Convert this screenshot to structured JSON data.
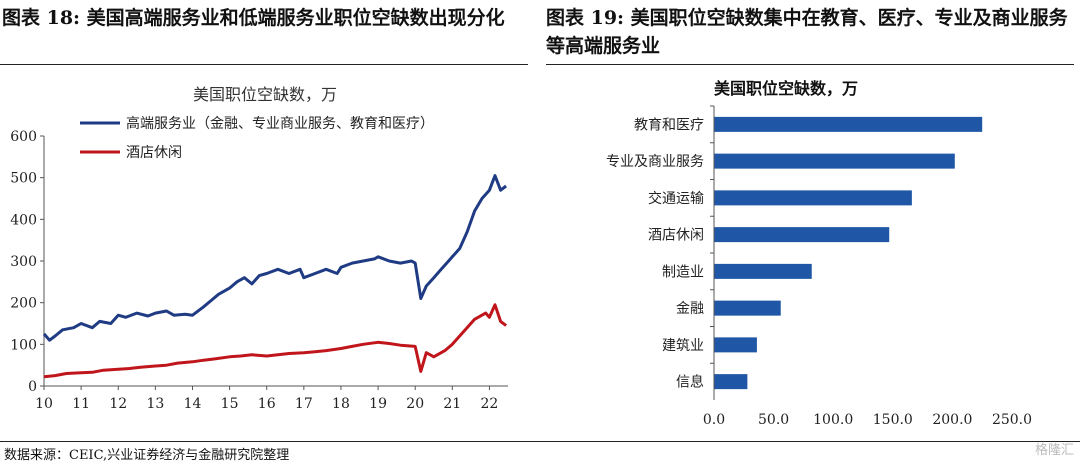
{
  "left_heading": "图表 18:  美国高端服务业和低端服务业职位空缺数出现分化",
  "right_heading": "图表 19:   美国职位空缺数集中在教育、医疗、专业及商业服务等高端服务业",
  "source": "数据来源：CEIC,兴业证券经济与金融研究院整理",
  "watermark": "格隆汇",
  "colors": {
    "navy": "#1f3b84",
    "red": "#c0161b",
    "bar": "#1f57a6",
    "axis": "#555555"
  },
  "chart_data": [
    {
      "type": "line",
      "title": "美国职位空缺数，万",
      "xlabel": "",
      "ylabel": "",
      "x_ticks": [
        "10",
        "11",
        "12",
        "13",
        "14",
        "15",
        "16",
        "17",
        "18",
        "19",
        "20",
        "21",
        "22"
      ],
      "xlim": [
        2010,
        2022.5
      ],
      "ylim": [
        0,
        600
      ],
      "y_ticks": [
        0,
        100,
        200,
        300,
        400,
        500,
        600
      ],
      "legend": "top-left",
      "series": [
        {
          "name": "高端服务业（金融、专业商业服务、教育和医疗）",
          "color": "#1f3b84",
          "x": [
            2010.0,
            2010.15,
            2010.3,
            2010.5,
            2010.8,
            2011.0,
            2011.3,
            2011.5,
            2011.8,
            2012.0,
            2012.2,
            2012.5,
            2012.8,
            2013.0,
            2013.3,
            2013.5,
            2013.8,
            2014.0,
            2014.3,
            2014.5,
            2014.7,
            2015.0,
            2015.2,
            2015.4,
            2015.6,
            2015.8,
            2016.0,
            2016.3,
            2016.6,
            2016.9,
            2017.0,
            2017.3,
            2017.6,
            2017.9,
            2018.0,
            2018.3,
            2018.6,
            2018.9,
            2019.0,
            2019.3,
            2019.6,
            2019.9,
            2020.0,
            2020.15,
            2020.3,
            2020.5,
            2020.7,
            2020.9,
            2021.0,
            2021.2,
            2021.4,
            2021.6,
            2021.8,
            2022.0,
            2022.15,
            2022.3,
            2022.45
          ],
          "y": [
            125,
            110,
            120,
            135,
            140,
            150,
            140,
            155,
            150,
            170,
            165,
            175,
            168,
            175,
            180,
            170,
            172,
            170,
            190,
            205,
            220,
            235,
            250,
            260,
            245,
            265,
            270,
            280,
            270,
            280,
            260,
            270,
            280,
            270,
            285,
            295,
            300,
            305,
            310,
            300,
            295,
            300,
            295,
            210,
            240,
            260,
            280,
            300,
            310,
            330,
            370,
            420,
            450,
            470,
            505,
            470,
            480
          ]
        },
        {
          "name": "酒店休闲",
          "color": "#c0161b",
          "x": [
            2010.0,
            2010.3,
            2010.6,
            2011.0,
            2011.3,
            2011.6,
            2012.0,
            2012.3,
            2012.6,
            2013.0,
            2013.3,
            2013.6,
            2014.0,
            2014.3,
            2014.6,
            2015.0,
            2015.3,
            2015.6,
            2016.0,
            2016.3,
            2016.6,
            2017.0,
            2017.3,
            2017.6,
            2018.0,
            2018.3,
            2018.6,
            2019.0,
            2019.3,
            2019.6,
            2020.0,
            2020.15,
            2020.3,
            2020.5,
            2020.8,
            2021.0,
            2021.3,
            2021.6,
            2021.9,
            2022.0,
            2022.15,
            2022.3,
            2022.45
          ],
          "y": [
            22,
            25,
            30,
            32,
            33,
            38,
            40,
            42,
            45,
            48,
            50,
            55,
            58,
            62,
            65,
            70,
            72,
            75,
            72,
            75,
            78,
            80,
            82,
            85,
            90,
            95,
            100,
            105,
            102,
            98,
            95,
            35,
            80,
            70,
            85,
            100,
            130,
            160,
            175,
            165,
            195,
            155,
            145
          ]
        }
      ]
    },
    {
      "type": "bar",
      "orientation": "horizontal",
      "title": "美国职位空缺数，万",
      "xlabel": "",
      "ylabel": "",
      "categories": [
        "教育和医疗",
        "专业及商业服务",
        "交通运输",
        "酒店休闲",
        "制造业",
        "金融",
        "建筑业",
        "信息"
      ],
      "values": [
        225,
        202,
        166,
        147,
        82,
        56,
        36,
        28
      ],
      "xlim": [
        0,
        250
      ],
      "x_ticks": [
        "0.0",
        "50.0",
        "100.0",
        "150.0",
        "200.0",
        "250.0"
      ],
      "grid": false
    }
  ]
}
